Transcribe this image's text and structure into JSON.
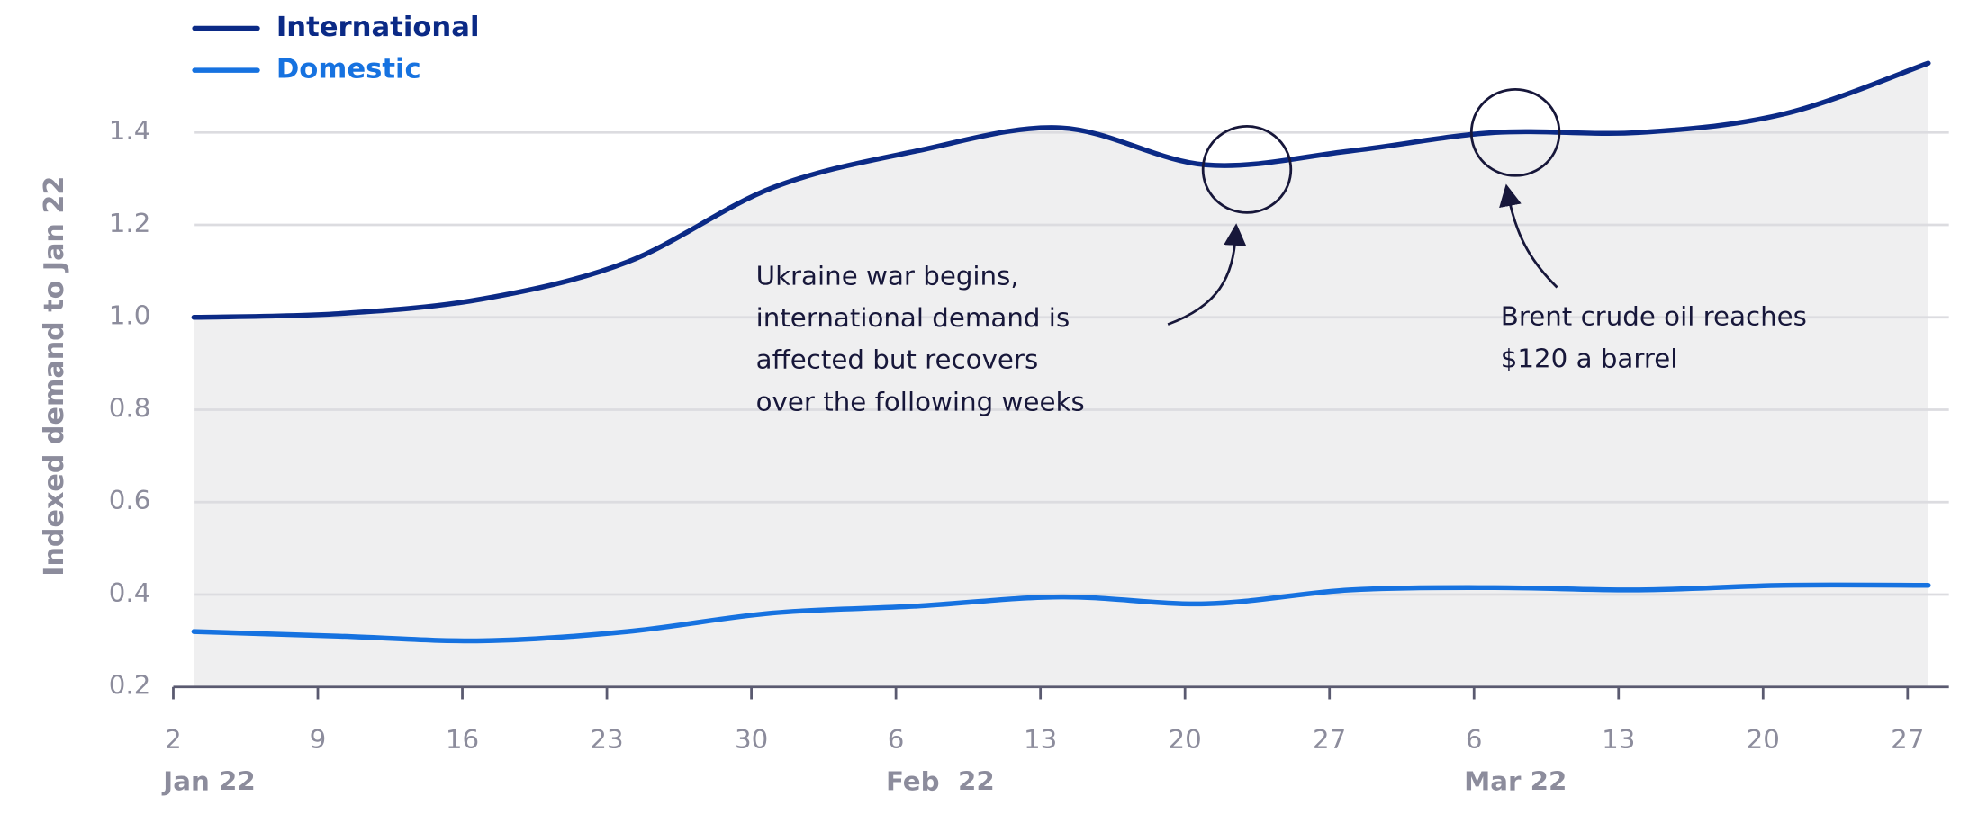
{
  "chart_data": {
    "type": "line",
    "y_label": "Indexed demand to Jan 22",
    "x": [
      "2022-01-03",
      "2022-01-10",
      "2022-01-17",
      "2022-01-24",
      "2022-01-31",
      "2022-02-07",
      "2022-02-14",
      "2022-02-21",
      "2022-02-28",
      "2022-03-07",
      "2022-03-14",
      "2022-03-21",
      "2022-03-28"
    ],
    "series": [
      {
        "name": "International",
        "color": "#0b2a86",
        "values": [
          1.0,
          1.008,
          1.04,
          1.12,
          1.28,
          1.36,
          1.41,
          1.33,
          1.36,
          1.4,
          1.4,
          1.44,
          1.55
        ]
      },
      {
        "name": "Domestic",
        "color": "#1672e0",
        "values": [
          0.32,
          0.31,
          0.3,
          0.32,
          0.36,
          0.375,
          0.395,
          0.38,
          0.41,
          0.415,
          0.41,
          0.42,
          0.42
        ]
      }
    ],
    "area_color": "#efeff0",
    "xlim": [
      "2022-01-02",
      "2022-03-29"
    ],
    "xticks": [
      {
        "value": "2022-01-02",
        "label": "2"
      },
      {
        "value": "2022-01-09",
        "label": "9"
      },
      {
        "value": "2022-01-16",
        "label": "16"
      },
      {
        "value": "2022-01-23",
        "label": "23"
      },
      {
        "value": "2022-01-30",
        "label": "30"
      },
      {
        "value": "2022-02-06",
        "label": "6"
      },
      {
        "value": "2022-02-13",
        "label": "13"
      },
      {
        "value": "2022-02-20",
        "label": "20"
      },
      {
        "value": "2022-02-27",
        "label": "27"
      },
      {
        "value": "2022-03-06",
        "label": "6"
      },
      {
        "value": "2022-03-13",
        "label": "13"
      },
      {
        "value": "2022-03-20",
        "label": "20"
      },
      {
        "value": "2022-03-27",
        "label": "27"
      }
    ],
    "month_labels": [
      {
        "value": "2022-01-02",
        "label": "Jan 22"
      },
      {
        "value": "2022-02-06",
        "label": "Feb  22"
      },
      {
        "value": "2022-03-06",
        "label": "Mar 22"
      }
    ],
    "ylim": [
      0.2,
      1.58
    ],
    "yticks": [
      0.2,
      0.4,
      0.6,
      0.8,
      {
        "value": 1,
        "label": "1.0"
      },
      1.2,
      1.4
    ],
    "grid": true,
    "annotations": [
      {
        "x": "2022-02-23",
        "y": 1.32,
        "lines": [
          "Ukraine war begins,",
          "international demand is",
          "affected but recovers",
          "over the following weeks"
        ]
      },
      {
        "x": "2022-03-08",
        "y": 1.4,
        "lines": [
          "Brent crude oil reaches",
          "$120 a barrel"
        ]
      }
    ]
  }
}
